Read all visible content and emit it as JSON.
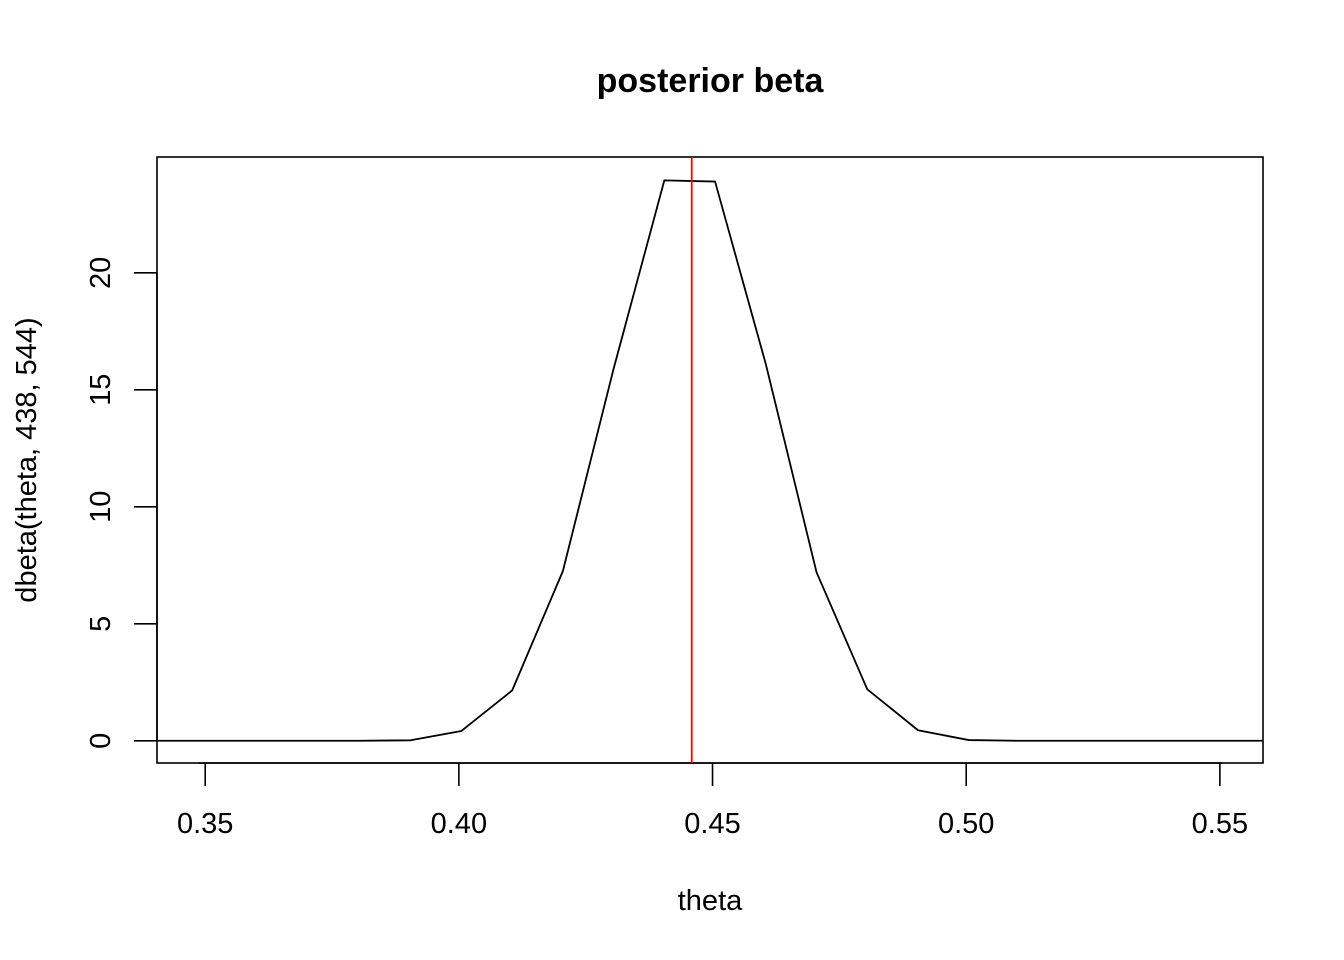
{
  "chart_data": {
    "type": "line",
    "title": "posterior beta",
    "xlabel": "theta",
    "ylabel": "dbeta(theta, 438, 544)",
    "xlim": [
      0.3405,
      0.5585
    ],
    "ylim": [
      -0.95,
      24.95
    ],
    "x_ticks": [
      0.35,
      0.4,
      0.45,
      0.5,
      0.55
    ],
    "x_tick_labels": [
      "0.35",
      "0.40",
      "0.45",
      "0.50",
      "0.55"
    ],
    "y_ticks": [
      0,
      5,
      10,
      15,
      20
    ],
    "y_tick_labels": [
      "0",
      "5",
      "10",
      "15",
      "20"
    ],
    "grid": false,
    "series": [
      {
        "color": "#000000",
        "x": [
          0.3405,
          0.3505,
          0.3605,
          0.3705,
          0.3805,
          0.3905,
          0.4005,
          0.4105,
          0.4205,
          0.4305,
          0.4405,
          0.4505,
          0.4605,
          0.4705,
          0.4805,
          0.4905,
          0.5005,
          0.5105,
          0.5205,
          0.5305,
          0.5405,
          0.5505,
          0.5585
        ],
        "y": [
          0.0,
          0.0,
          0.0,
          0.0,
          0.0,
          0.02,
          0.42,
          2.15,
          7.25,
          15.9,
          23.95,
          23.9,
          16.1,
          7.2,
          2.2,
          0.45,
          0.03,
          0.0,
          0.0,
          0.0,
          0.0,
          0.0,
          0.0
        ]
      }
    ],
    "vline": {
      "x": 0.4459,
      "color": "#ff0000"
    }
  }
}
